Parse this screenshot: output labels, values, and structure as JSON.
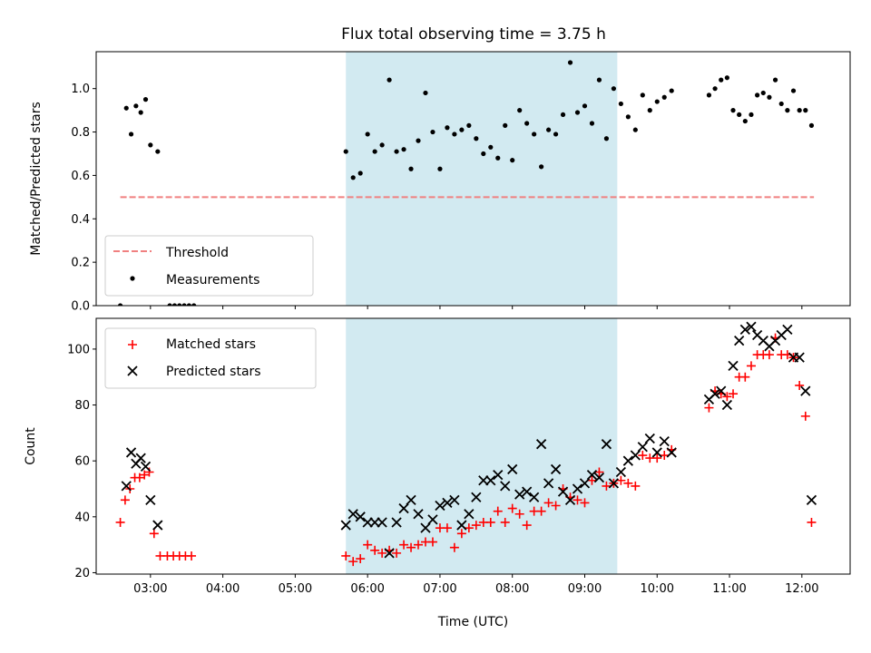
{
  "title": "Flux total observing time = 3.75 h",
  "colors": {
    "threshold": "#f08080",
    "measurements": "#000000",
    "matched": "#ff0000",
    "predicted": "#000000",
    "highlight": "#add8e6"
  },
  "chart_data": [
    {
      "type": "scatter",
      "ylabel": "Matched/Predicted stars",
      "xlabel": "",
      "xlim": [
        "02:15",
        "12:40"
      ],
      "ylim": [
        0,
        1.17
      ],
      "yticks": [
        "0.0",
        "0.2",
        "0.4",
        "0.6",
        "0.8",
        "1.0"
      ],
      "shaded_interval": [
        "05:42",
        "09:27"
      ],
      "legend": {
        "position": "lower-left",
        "entries": [
          "Threshold",
          "Measurements"
        ]
      },
      "threshold": {
        "name": "Threshold",
        "value": 0.5,
        "x_range": [
          "02:35",
          "12:10"
        ]
      },
      "series": [
        {
          "name": "Measurements",
          "points": [
            [
              "02:35",
              0.0
            ],
            [
              "02:40",
              0.91
            ],
            [
              "02:44",
              0.79
            ],
            [
              "02:48",
              0.92
            ],
            [
              "02:52",
              0.89
            ],
            [
              "02:56",
              0.95
            ],
            [
              "03:00",
              0.74
            ],
            [
              "03:06",
              0.71
            ],
            [
              "03:16",
              0.0
            ],
            [
              "03:20",
              0.0
            ],
            [
              "03:24",
              0.0
            ],
            [
              "03:28",
              0.0
            ],
            [
              "03:32",
              0.0
            ],
            [
              "03:36",
              0.0
            ],
            [
              "05:42",
              0.71
            ],
            [
              "05:48",
              0.59
            ],
            [
              "05:54",
              0.61
            ],
            [
              "06:00",
              0.79
            ],
            [
              "06:06",
              0.71
            ],
            [
              "06:12",
              0.74
            ],
            [
              "06:18",
              1.04
            ],
            [
              "06:24",
              0.71
            ],
            [
              "06:30",
              0.72
            ],
            [
              "06:36",
              0.63
            ],
            [
              "06:42",
              0.76
            ],
            [
              "06:48",
              0.98
            ],
            [
              "06:54",
              0.8
            ],
            [
              "07:00",
              0.63
            ],
            [
              "07:06",
              0.82
            ],
            [
              "07:12",
              0.79
            ],
            [
              "07:18",
              0.81
            ],
            [
              "07:24",
              0.83
            ],
            [
              "07:30",
              0.77
            ],
            [
              "07:36",
              0.7
            ],
            [
              "07:42",
              0.73
            ],
            [
              "07:48",
              0.68
            ],
            [
              "07:54",
              0.83
            ],
            [
              "08:00",
              0.67
            ],
            [
              "08:06",
              0.9
            ],
            [
              "08:12",
              0.84
            ],
            [
              "08:18",
              0.79
            ],
            [
              "08:24",
              0.64
            ],
            [
              "08:30",
              0.81
            ],
            [
              "08:36",
              0.79
            ],
            [
              "08:42",
              0.88
            ],
            [
              "08:48",
              1.12
            ],
            [
              "08:54",
              0.89
            ],
            [
              "09:00",
              0.92
            ],
            [
              "09:06",
              0.84
            ],
            [
              "09:12",
              1.04
            ],
            [
              "09:18",
              0.77
            ],
            [
              "09:24",
              1.0
            ],
            [
              "09:30",
              0.93
            ],
            [
              "09:36",
              0.87
            ],
            [
              "09:42",
              0.81
            ],
            [
              "09:48",
              0.97
            ],
            [
              "09:54",
              0.9
            ],
            [
              "10:00",
              0.94
            ],
            [
              "10:06",
              0.96
            ],
            [
              "10:12",
              0.99
            ],
            [
              "10:43",
              0.97
            ],
            [
              "10:48",
              1.0
            ],
            [
              "10:53",
              1.04
            ],
            [
              "10:58",
              1.05
            ],
            [
              "11:03",
              0.9
            ],
            [
              "11:08",
              0.88
            ],
            [
              "11:13",
              0.85
            ],
            [
              "11:18",
              0.88
            ],
            [
              "11:23",
              0.97
            ],
            [
              "11:28",
              0.98
            ],
            [
              "11:33",
              0.96
            ],
            [
              "11:38",
              1.04
            ],
            [
              "11:43",
              0.93
            ],
            [
              "11:48",
              0.9
            ],
            [
              "11:53",
              0.99
            ],
            [
              "11:58",
              0.9
            ],
            [
              "12:03",
              0.9
            ],
            [
              "12:08",
              0.83
            ]
          ]
        }
      ]
    },
    {
      "type": "scatter",
      "ylabel": "Count",
      "xlabel": "Time (UTC)",
      "xlim": [
        "02:15",
        "12:40"
      ],
      "ylim": [
        19.5,
        111
      ],
      "yticks": [
        "20",
        "40",
        "60",
        "80",
        "100"
      ],
      "xticks": [
        "03:00",
        "04:00",
        "05:00",
        "06:00",
        "07:00",
        "08:00",
        "09:00",
        "10:00",
        "11:00",
        "12:00"
      ],
      "shaded_interval": [
        "05:42",
        "09:27"
      ],
      "legend": {
        "position": "upper-left",
        "entries": [
          "Matched stars",
          "Predicted stars"
        ]
      },
      "series": [
        {
          "name": "Matched stars",
          "marker": "+",
          "points": [
            [
              "02:35",
              38
            ],
            [
              "02:39",
              46
            ],
            [
              "02:43",
              50
            ],
            [
              "02:47",
              54
            ],
            [
              "02:51",
              54
            ],
            [
              "02:55",
              55
            ],
            [
              "02:59",
              56
            ],
            [
              "03:03",
              34
            ],
            [
              "03:08",
              26
            ],
            [
              "03:14",
              26
            ],
            [
              "03:19",
              26
            ],
            [
              "03:24",
              26
            ],
            [
              "03:29",
              26
            ],
            [
              "03:34",
              26
            ],
            [
              "05:42",
              26
            ],
            [
              "05:48",
              24
            ],
            [
              "05:54",
              25
            ],
            [
              "06:00",
              30
            ],
            [
              "06:06",
              28
            ],
            [
              "06:12",
              27
            ],
            [
              "06:18",
              28
            ],
            [
              "06:24",
              27
            ],
            [
              "06:30",
              30
            ],
            [
              "06:36",
              29
            ],
            [
              "06:42",
              30
            ],
            [
              "06:48",
              31
            ],
            [
              "06:54",
              31
            ],
            [
              "07:00",
              36
            ],
            [
              "07:06",
              36
            ],
            [
              "07:12",
              29
            ],
            [
              "07:18",
              34
            ],
            [
              "07:24",
              36
            ],
            [
              "07:30",
              37
            ],
            [
              "07:36",
              38
            ],
            [
              "07:42",
              38
            ],
            [
              "07:48",
              42
            ],
            [
              "07:54",
              38
            ],
            [
              "08:00",
              43
            ],
            [
              "08:06",
              41
            ],
            [
              "08:12",
              37
            ],
            [
              "08:18",
              42
            ],
            [
              "08:24",
              42
            ],
            [
              "08:30",
              45
            ],
            [
              "08:36",
              44
            ],
            [
              "08:42",
              50
            ],
            [
              "08:48",
              47
            ],
            [
              "08:54",
              46
            ],
            [
              "09:00",
              45
            ],
            [
              "09:06",
              53
            ],
            [
              "09:12",
              56
            ],
            [
              "09:18",
              51
            ],
            [
              "09:24",
              52
            ],
            [
              "09:30",
              53
            ],
            [
              "09:36",
              52
            ],
            [
              "09:42",
              51
            ],
            [
              "09:48",
              62
            ],
            [
              "09:54",
              61
            ],
            [
              "10:00",
              61
            ],
            [
              "10:06",
              62
            ],
            [
              "10:12",
              64
            ],
            [
              "10:43",
              79
            ],
            [
              "10:48",
              85
            ],
            [
              "10:53",
              84
            ],
            [
              "10:58",
              83
            ],
            [
              "11:03",
              84
            ],
            [
              "11:08",
              90
            ],
            [
              "11:13",
              90
            ],
            [
              "11:18",
              94
            ],
            [
              "11:23",
              98
            ],
            [
              "11:28",
              98
            ],
            [
              "11:33",
              98
            ],
            [
              "11:38",
              104
            ],
            [
              "11:43",
              98
            ],
            [
              "11:48",
              98
            ],
            [
              "11:53",
              97
            ],
            [
              "11:58",
              87
            ],
            [
              "12:03",
              76
            ],
            [
              "12:08",
              38
            ]
          ]
        },
        {
          "name": "Predicted stars",
          "marker": "x",
          "points": [
            [
              "02:40",
              51
            ],
            [
              "02:44",
              63
            ],
            [
              "02:48",
              59
            ],
            [
              "02:52",
              61
            ],
            [
              "02:56",
              58
            ],
            [
              "03:00",
              46
            ],
            [
              "03:06",
              37
            ],
            [
              "05:42",
              37
            ],
            [
              "05:48",
              41
            ],
            [
              "05:54",
              40
            ],
            [
              "06:00",
              38
            ],
            [
              "06:06",
              38
            ],
            [
              "06:12",
              38
            ],
            [
              "06:18",
              27
            ],
            [
              "06:24",
              38
            ],
            [
              "06:30",
              43
            ],
            [
              "06:36",
              46
            ],
            [
              "06:42",
              41
            ],
            [
              "06:48",
              36
            ],
            [
              "06:54",
              39
            ],
            [
              "07:00",
              44
            ],
            [
              "07:06",
              45
            ],
            [
              "07:12",
              46
            ],
            [
              "07:18",
              37
            ],
            [
              "07:24",
              41
            ],
            [
              "07:30",
              47
            ],
            [
              "07:36",
              53
            ],
            [
              "07:42",
              53
            ],
            [
              "07:48",
              55
            ],
            [
              "07:54",
              51
            ],
            [
              "08:00",
              57
            ],
            [
              "08:06",
              48
            ],
            [
              "08:12",
              49
            ],
            [
              "08:18",
              47
            ],
            [
              "08:24",
              66
            ],
            [
              "08:30",
              52
            ],
            [
              "08:36",
              57
            ],
            [
              "08:42",
              49
            ],
            [
              "08:48",
              46
            ],
            [
              "08:54",
              50
            ],
            [
              "09:00",
              52
            ],
            [
              "09:06",
              55
            ],
            [
              "09:12",
              54
            ],
            [
              "09:18",
              66
            ],
            [
              "09:24",
              52
            ],
            [
              "09:30",
              56
            ],
            [
              "09:36",
              60
            ],
            [
              "09:42",
              62
            ],
            [
              "09:48",
              65
            ],
            [
              "09:54",
              68
            ],
            [
              "10:00",
              63
            ],
            [
              "10:06",
              67
            ],
            [
              "10:12",
              63
            ],
            [
              "10:43",
              82
            ],
            [
              "10:48",
              84
            ],
            [
              "10:53",
              85
            ],
            [
              "10:58",
              80
            ],
            [
              "11:03",
              94
            ],
            [
              "11:08",
              103
            ],
            [
              "11:13",
              107
            ],
            [
              "11:18",
              108
            ],
            [
              "11:23",
              105
            ],
            [
              "11:28",
              103
            ],
            [
              "11:33",
              101
            ],
            [
              "11:38",
              103
            ],
            [
              "11:43",
              105
            ],
            [
              "11:48",
              107
            ],
            [
              "11:53",
              97
            ],
            [
              "11:58",
              97
            ],
            [
              "12:03",
              85
            ],
            [
              "12:08",
              46
            ]
          ]
        }
      ]
    }
  ]
}
